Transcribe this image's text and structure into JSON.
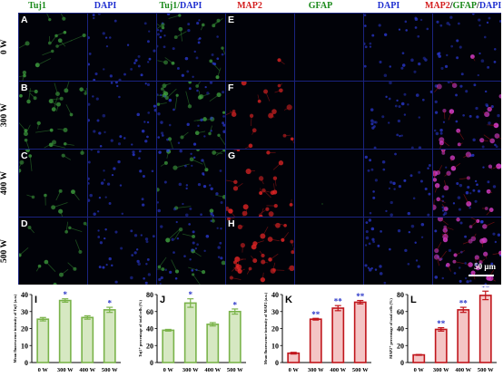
{
  "headers": [
    {
      "text": "Tuj1",
      "color": "#1a8a1a"
    },
    {
      "text": "DAPI",
      "color": "#1f2fd0"
    },
    {
      "text": "Tuj1/DAPI",
      "color": "#1a8a1a",
      "split": [
        "Tuj1",
        "/",
        "DAPI"
      ],
      "split_colors": [
        "#1a8a1a",
        "#1a8a1a",
        "#1f2fd0"
      ]
    },
    {
      "text": "MAP2",
      "color": "#d42020"
    },
    {
      "text": "GFAP",
      "color": "#1a8a1a"
    },
    {
      "text": "DAPI",
      "color": "#1f2fd0"
    },
    {
      "text": "MAP2/GFAP/DAPI",
      "split": [
        "MAP2",
        "/",
        "GFAP",
        "/",
        "DAPI"
      ],
      "split_colors": [
        "#d42020",
        "#000000",
        "#1a8a1a",
        "#000000",
        "#1f2fd0"
      ]
    }
  ],
  "rows": [
    "0 W",
    "300 W",
    "400 W",
    "500 W"
  ],
  "panel_letters_left": [
    "A",
    "B",
    "C",
    "D"
  ],
  "panel_letters_right": [
    "E",
    "F",
    "G",
    "H"
  ],
  "scale_bar": "50 μm",
  "colors": {
    "green": "#7ab34a",
    "green_fill": "#d6e8c2",
    "red": "#c0151b",
    "red_fill": "#f4c5c5",
    "star": "#2a36c8",
    "frame": "#1a237e"
  },
  "chart_data": [
    {
      "type": "bar",
      "panel": "I",
      "categories": [
        "0 W",
        "300 W",
        "400 W",
        "500 W"
      ],
      "values": [
        25.5,
        36.5,
        26.5,
        31.0
      ],
      "errors": [
        1.0,
        1.0,
        1.0,
        1.5
      ],
      "significance": [
        "",
        "*",
        "",
        "*"
      ],
      "ylabel": "Mean fluorescence intensity of Tuj1 (a.u.)",
      "ylim": [
        0,
        40
      ],
      "yticks": [
        0,
        10,
        20,
        30,
        40
      ],
      "color": "green"
    },
    {
      "type": "bar",
      "panel": "J",
      "categories": [
        "0 W",
        "300 W",
        "400 W",
        "500 W"
      ],
      "values": [
        38,
        70,
        45,
        60
      ],
      "errors": [
        1,
        5,
        2,
        3
      ],
      "significance": [
        "",
        "*",
        "",
        "*"
      ],
      "ylabel": "Tuj1⁺ percentage of total cells (%)",
      "ylim": [
        0,
        80
      ],
      "yticks": [
        0,
        20,
        40,
        60,
        80
      ],
      "color": "green"
    },
    {
      "type": "bar",
      "panel": "K",
      "categories": [
        "0 W",
        "300 W",
        "400 W",
        "500 W"
      ],
      "values": [
        5.5,
        25.5,
        32.0,
        35.5
      ],
      "errors": [
        0.5,
        0.5,
        1.5,
        1.0
      ],
      "significance": [
        "",
        "**",
        "**",
        "**"
      ],
      "ylabel": "Mean fluorescence intensity of MAP2 (a.u.)",
      "ylim": [
        0,
        40
      ],
      "yticks": [
        0,
        10,
        20,
        30,
        40
      ],
      "color": "red"
    },
    {
      "type": "bar",
      "panel": "L",
      "categories": [
        "0 W",
        "300 W",
        "400 W",
        "500 W"
      ],
      "values": [
        9,
        39,
        62,
        79
      ],
      "errors": [
        0.5,
        2,
        3,
        5
      ],
      "significance": [
        "",
        "**",
        "**",
        "**"
      ],
      "ylabel": "MAP2⁺ percentage of total cells (%)",
      "ylim": [
        0,
        80
      ],
      "yticks": [
        0,
        20,
        40,
        60,
        80
      ],
      "color": "red"
    }
  ]
}
